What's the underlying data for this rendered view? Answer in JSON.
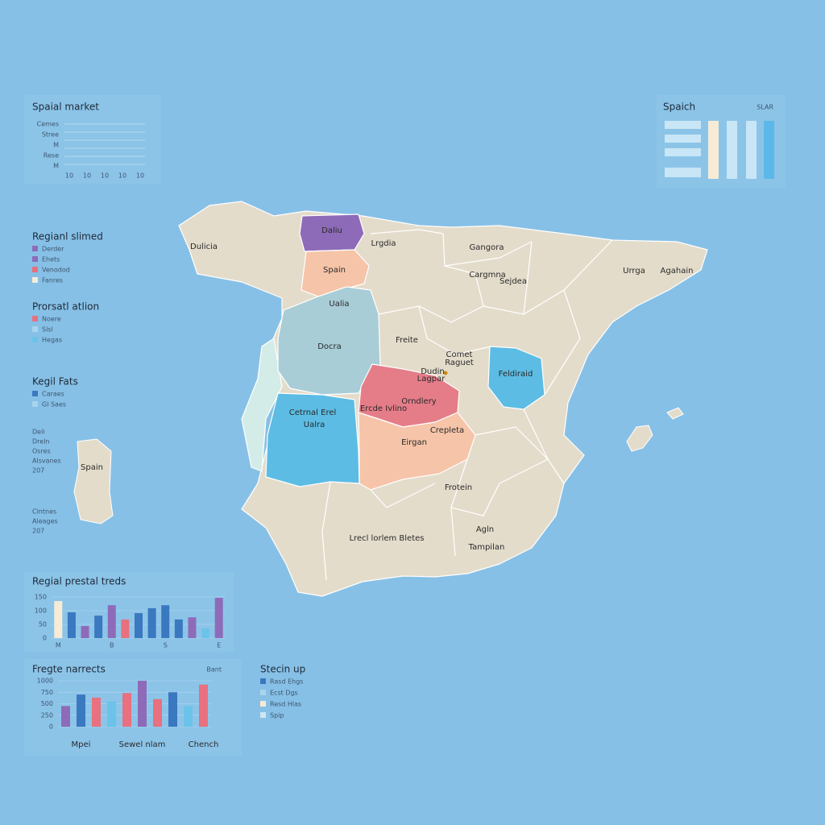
{
  "top_left": {
    "title": "Spaial market",
    "rows": [
      "Cemes",
      "Stree",
      "M",
      "Rese",
      "M"
    ],
    "ticks": [
      "10",
      "10",
      "10",
      "10",
      "10"
    ]
  },
  "top_right": {
    "title": "Spaich",
    "subtitle": "SLAR"
  },
  "legends": [
    {
      "title": "Regianl slimed",
      "items": [
        {
          "label": "Derder",
          "color": "#8e6bb8"
        },
        {
          "label": "Ehets",
          "color": "#8e6bb8"
        },
        {
          "label": "Venodod",
          "color": "#e8707f"
        },
        {
          "label": "Fanres",
          "color": "#f6ecd6"
        }
      ]
    },
    {
      "title": "Prorsatl atlion",
      "items": [
        {
          "label": "Noere",
          "color": "#e8707f"
        },
        {
          "label": "Slsl",
          "color": "#a8d4ec"
        },
        {
          "label": "Hegas",
          "color": "#6cc3ea"
        }
      ]
    },
    {
      "title": "Kegil Fats",
      "items": [
        {
          "label": "Caraes",
          "color": "#3a78c0"
        },
        {
          "label": "Gl Saes",
          "color": "#a8d4ec"
        }
      ]
    },
    {
      "title": "Stecin up",
      "items": [
        {
          "label": "Rasd Ehgs",
          "color": "#3a78c0"
        },
        {
          "label": "Ecst Dgs",
          "color": "#a8d4ec"
        },
        {
          "label": "Resd Hlas",
          "color": "#f6ecd6"
        },
        {
          "label": "Spip",
          "color": "#cfe6f3"
        }
      ]
    }
  ],
  "notes": [
    [
      "Deli",
      "Dreln",
      "Osres",
      "Alsvanes",
      "207"
    ],
    [
      "Clntnes",
      "Aleages",
      "207"
    ]
  ],
  "map_labels": [
    "Dulicia",
    "Daliu",
    "Lrgdia",
    "Gangora",
    "Urrga",
    "Agahain",
    "Spain",
    "Cargmna",
    "Sejdea",
    "Ualia",
    "Freite",
    "Docra",
    "Comet",
    "Raguet",
    "Dudin",
    "Lagpar",
    "Feldiraid",
    "Cetrnal Erel",
    "Ualra",
    "Orndlery",
    "Ercde Ivlino",
    "Crepleta",
    "Eirgan",
    "Spain",
    "Frotein",
    "Lrecl lorlem Bletes",
    "Agln",
    "Tampilan"
  ],
  "chart_data": [
    {
      "type": "bar",
      "title": "Regial prestal treds",
      "ylim": [
        0,
        150
      ],
      "yticks": [
        0,
        50,
        100,
        150
      ],
      "categories": [
        "M",
        null,
        null,
        null,
        "B",
        null,
        null,
        null,
        "S",
        null,
        null,
        null,
        "E"
      ],
      "values": [
        135,
        94,
        44,
        82,
        120,
        68,
        91,
        109,
        120,
        68,
        76,
        35,
        147
      ],
      "colors": [
        "#f6ecd6",
        "#3a78c0",
        "#8e6bb8",
        "#3a78c0",
        "#8e6bb8",
        "#e8707f",
        "#3a78c0",
        "#3a78c0",
        "#3a78c0",
        "#3a78c0",
        "#8e6bb8",
        "#6cc3ea",
        "#8e6bb8"
      ]
    },
    {
      "type": "bar",
      "title": "Fregte narrects",
      "subtitle": "Bant",
      "ylim": [
        0,
        1000
      ],
      "yticks": [
        0,
        250,
        500,
        750,
        1000
      ],
      "categories": [
        null,
        "Mpei",
        null,
        null,
        null,
        "Sewel nlam",
        null,
        null,
        null,
        "Chench"
      ],
      "values": [
        450,
        700,
        633,
        550,
        733,
        1000,
        600,
        750,
        450,
        917
      ],
      "colors": [
        "#8e6bb8",
        "#3a78c0",
        "#e8707f",
        "#6cc3ea",
        "#e8707f",
        "#8e6bb8",
        "#e8707f",
        "#3a78c0",
        "#6cc3ea",
        "#e8707f"
      ]
    }
  ]
}
